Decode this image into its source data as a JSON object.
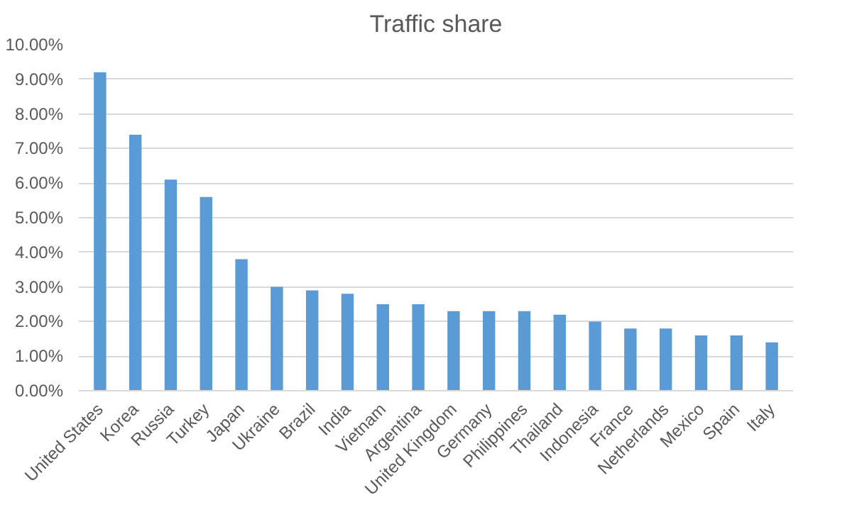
{
  "chart_data": {
    "type": "bar",
    "title": "Traffic share",
    "categories": [
      "United States",
      "Korea",
      "Russia",
      "Turkey",
      "Japan",
      "Ukraine",
      "Brazil",
      "India",
      "Vietnam",
      "Argentina",
      "United Kingdom",
      "Germany",
      "Philippines",
      "Thailand",
      "Indonesia",
      "France",
      "Netherlands",
      "Mexico",
      "Spain",
      "Italy"
    ],
    "values": [
      9.2,
      7.4,
      6.1,
      5.6,
      3.8,
      3.0,
      2.9,
      2.8,
      2.5,
      2.5,
      2.3,
      2.3,
      2.3,
      2.2,
      2.0,
      1.8,
      1.8,
      1.6,
      1.6,
      1.4
    ],
    "color": "#5b9bd5",
    "ylim": [
      0,
      10
    ],
    "yticks": [
      {
        "value": 0,
        "label": "0.00%"
      },
      {
        "value": 1,
        "label": "1.00%"
      },
      {
        "value": 2,
        "label": "2.00%"
      },
      {
        "value": 3,
        "label": "3.00%"
      },
      {
        "value": 4,
        "label": "4.00%"
      },
      {
        "value": 5,
        "label": "5.00%"
      },
      {
        "value": 6,
        "label": "6.00%"
      },
      {
        "value": 7,
        "label": "7.00%"
      },
      {
        "value": 8,
        "label": "8.00%"
      },
      {
        "value": 9,
        "label": "9.00%"
      },
      {
        "value": 10,
        "label": "10.00%"
      }
    ],
    "grid": "y"
  }
}
